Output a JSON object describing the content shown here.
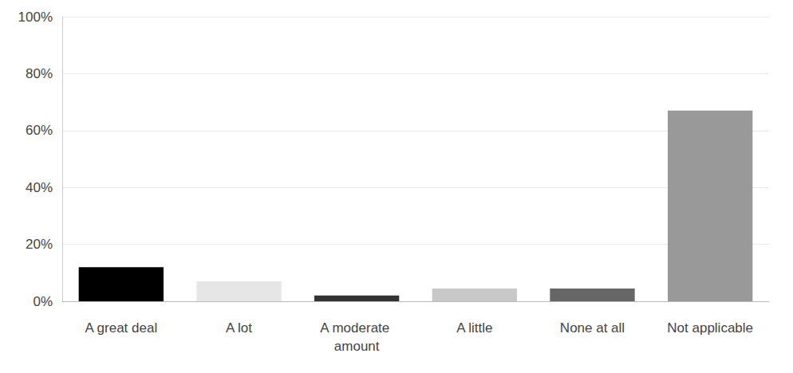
{
  "chart_data": {
    "type": "bar",
    "categories": [
      "A great deal",
      "A lot",
      "A moderate amount",
      "A little",
      "None at all",
      "Not applicable"
    ],
    "values": [
      12,
      7,
      2,
      4.5,
      4.5,
      67
    ],
    "colors": [
      "#000000",
      "#e6e6e6",
      "#333333",
      "#c8c8c8",
      "#666666",
      "#999999"
    ],
    "ylim": [
      0,
      100
    ],
    "yticks": [
      {
        "value": 0,
        "label": "0%"
      },
      {
        "value": 20,
        "label": "20%"
      },
      {
        "value": 40,
        "label": "40%"
      },
      {
        "value": 60,
        "label": "60%"
      },
      {
        "value": 80,
        "label": "80%"
      },
      {
        "value": 100,
        "label": "100%"
      }
    ],
    "grid": true
  }
}
